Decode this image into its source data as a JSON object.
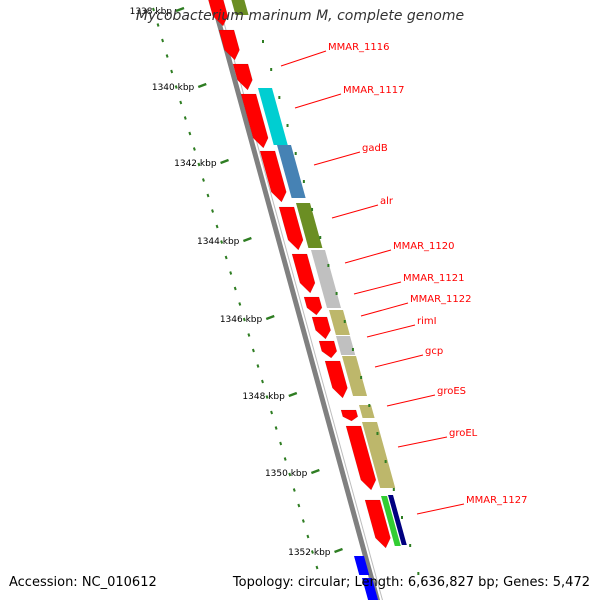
{
  "title": "Mycobacterium marinum M, complete genome",
  "footer": {
    "accession": "Accession: NC_010612",
    "summary": "Topology: circular; Length: 6,636,827 bp; Genes: 5,472"
  },
  "colors": {
    "cds": "#ff0000",
    "ring_line": "#808080",
    "tick": "#2e7d22",
    "leader": "#ff0000"
  },
  "ticks": [
    {
      "label": "1338 kbp"
    },
    {
      "label": "1340 kbp"
    },
    {
      "label": "1342 kbp"
    },
    {
      "label": "1344 kbp"
    },
    {
      "label": "1346 kbp"
    },
    {
      "label": "1348 kbp"
    },
    {
      "label": "1350 kbp"
    },
    {
      "label": "1352 kbp"
    }
  ],
  "gene_labels": [
    {
      "label": "MMAR_1116"
    },
    {
      "label": "MMAR_1117"
    },
    {
      "label": "gadB"
    },
    {
      "label": "alr"
    },
    {
      "label": "MMAR_1120"
    },
    {
      "label": "MMAR_1121"
    },
    {
      "label": "MMAR_1122"
    },
    {
      "label": "rimI"
    },
    {
      "label": "gcp"
    },
    {
      "label": "groES"
    },
    {
      "label": "groEL"
    },
    {
      "label": "MMAR_1127"
    }
  ],
  "function_colors": [
    "#6b8e23",
    "#00ced1",
    "#4682b4",
    "#c0c0c0",
    "#bdb76b",
    "#32cd32",
    "#000080",
    "#0000ff"
  ]
}
